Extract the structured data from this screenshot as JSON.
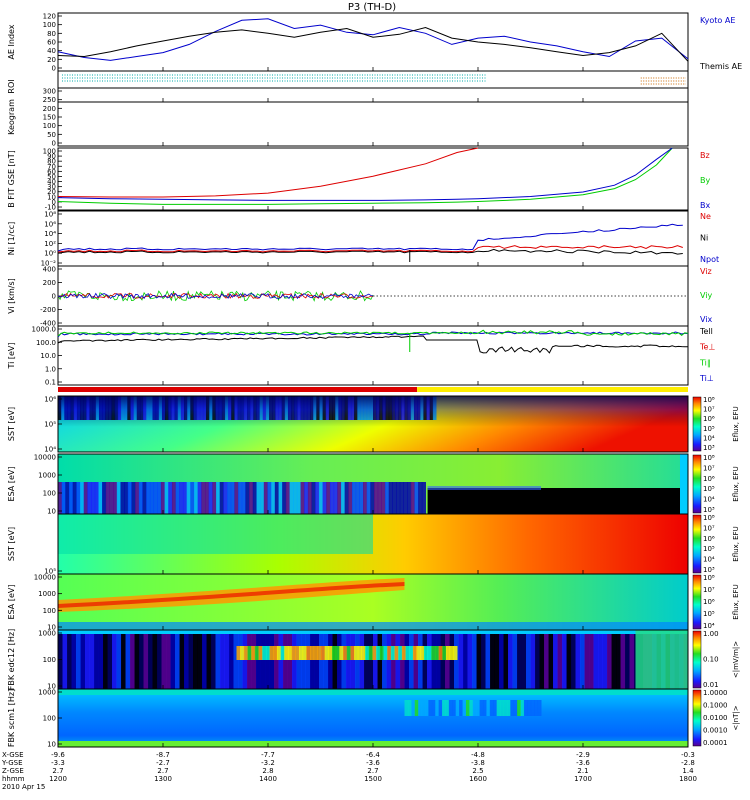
{
  "title": "P3 (TH-D)",
  "footer": {
    "row_labels": [
      "X-GSE",
      "Y-GSE",
      "Z-GSE",
      "hhmm",
      "2010 Apr 15"
    ],
    "columns": [
      [
        "-9.6",
        "-3.3",
        "2.7",
        "1200"
      ],
      [
        "-8.7",
        "-2.7",
        "2.7",
        "1300"
      ],
      [
        "-7.7",
        "-3.2",
        "2.8",
        "1400"
      ],
      [
        "-6.4",
        "-3.6",
        "2.7",
        "1500"
      ],
      [
        "-4.8",
        "-3.8",
        "2.5",
        "1600"
      ],
      [
        "-2.9",
        "-3.6",
        "2.1",
        "1700"
      ],
      [
        "-0.3",
        "-2.8",
        "1.4",
        "1800"
      ]
    ]
  },
  "colors": {
    "black": "#000000",
    "blue": "#0000cc",
    "red": "#dd0000",
    "green": "#00cc00",
    "cyan": "#00aaaa",
    "orange": "#cc6600"
  },
  "chart_data": [
    {
      "type": "line",
      "panel": "AE Index",
      "ylabel": "AE Index",
      "ylim": [
        0,
        120
      ],
      "ytick_labels": [
        "0",
        "20",
        "40",
        "60",
        "80",
        "100",
        "120"
      ],
      "x_hours": [
        12.0,
        12.25,
        12.5,
        12.75,
        13.0,
        13.25,
        13.5,
        13.75,
        14.0,
        14.25,
        14.5,
        14.75,
        15.0,
        15.25,
        15.5,
        15.75,
        16.0,
        16.25,
        16.5,
        16.75,
        17.0,
        17.25,
        17.5,
        17.75,
        18.0
      ],
      "series": [
        {
          "name": "Kyoto AE",
          "color": "blue",
          "values": [
            40,
            28,
            22,
            30,
            38,
            55,
            82,
            105,
            108,
            88,
            95,
            80,
            75,
            90,
            78,
            55,
            68,
            72,
            60,
            52,
            40,
            30,
            62,
            68,
            25
          ]
        },
        {
          "name": "Themis AE",
          "color": "black",
          "values": [
            32,
            30,
            40,
            52,
            62,
            72,
            80,
            85,
            78,
            70,
            80,
            88,
            70,
            76,
            90,
            68,
            60,
            55,
            48,
            40,
            32,
            38,
            52,
            78,
            20
          ]
        }
      ]
    },
    {
      "type": "line",
      "panel": "ROI",
      "ylabel": "ROI"
    },
    {
      "type": "line",
      "panel": "Keogram",
      "ylabel": "Keogram",
      "ylim": [
        0,
        300
      ],
      "ytick_labels": [
        "0",
        "50",
        "100",
        "150",
        "200",
        "250",
        "300"
      ]
    },
    {
      "type": "line",
      "panel": "B FIT",
      "ylabel": "B FIT GSE [nT]",
      "ylim": [
        -10,
        100
      ],
      "ytick_labels": [
        "-10",
        "0",
        "10",
        "20",
        "30",
        "40",
        "50",
        "60",
        "70",
        "80",
        "90",
        "100"
      ],
      "x_hours": [
        12.0,
        12.5,
        13.0,
        13.5,
        14.0,
        14.5,
        15.0,
        15.5,
        15.8,
        16.0,
        16.5,
        17.0,
        17.3,
        17.5,
        17.7,
        17.85
      ],
      "series": [
        {
          "name": "Bz",
          "color": "red",
          "values": [
            14,
            13,
            13,
            15,
            20,
            32,
            50,
            72,
            92,
            100,
            null,
            null,
            null,
            null,
            null,
            null
          ]
        },
        {
          "name": "By",
          "color": "green",
          "values": [
            5,
            2,
            0,
            0,
            0,
            1,
            2,
            3,
            4,
            5,
            9,
            17,
            28,
            44,
            70,
            100
          ]
        },
        {
          "name": "Bx",
          "color": "blue",
          "values": [
            12,
            10,
            9,
            8,
            7,
            7,
            7,
            8,
            9,
            10,
            14,
            22,
            34,
            52,
            80,
            100
          ]
        }
      ]
    },
    {
      "type": "line",
      "panel": "Ni",
      "ylabel": "Ni [1/cc]",
      "ytick_labels": [
        "10⁻²",
        "10⁰",
        "10²",
        "10⁴",
        "10⁶",
        "10⁸"
      ],
      "series": [
        {
          "name": "Ne",
          "color": "red"
        },
        {
          "name": "Ni",
          "color": "black"
        },
        {
          "name": "Npot",
          "color": "blue"
        }
      ]
    },
    {
      "type": "line",
      "panel": "Vi",
      "ylabel": "Vi [km/s]",
      "ylim": [
        -400,
        400
      ],
      "ytick_labels": [
        "-400",
        "-200",
        "0",
        "200",
        "400"
      ],
      "series": [
        {
          "name": "Viz",
          "color": "red"
        },
        {
          "name": "Viy",
          "color": "green"
        },
        {
          "name": "Vix",
          "color": "blue"
        }
      ]
    },
    {
      "type": "line",
      "panel": "Ti",
      "ylabel": "Ti [eV]",
      "ytick_labels": [
        "0.1",
        "1.0",
        "10.0",
        "100.0",
        "1000.0"
      ],
      "series": [
        {
          "name": "Tell",
          "color": "black"
        },
        {
          "name": "Te⊥",
          "color": "red"
        },
        {
          "name": "Ti∥",
          "color": "green"
        },
        {
          "name": "Ti⊥",
          "color": "blue"
        }
      ]
    },
    {
      "type": "heatmap",
      "panel": "SST ions",
      "ylabel": "SST [eV]",
      "ytick_labels": [
        "10⁴",
        "10⁵",
        "10⁶"
      ],
      "colorbar": {
        "label": "Eflux, EFU",
        "ticks": [
          "10³",
          "10⁴",
          "10⁵",
          "10⁶",
          "10⁷",
          "10⁸"
        ]
      }
    },
    {
      "type": "heatmap",
      "panel": "ESA ions",
      "ylabel": "ESA [eV]",
      "ytick_labels": [
        "10",
        "100",
        "1000",
        "10000"
      ],
      "colorbar": {
        "label": "Eflux, EFU",
        "ticks": [
          "10³",
          "10⁴",
          "10⁵",
          "10⁶",
          "10⁷",
          "10⁸"
        ]
      }
    },
    {
      "type": "heatmap",
      "panel": "SST electrons",
      "ylabel": "SST [eV]",
      "ytick_labels": [
        "10⁵"
      ],
      "colorbar": {
        "label": "Eflux, EFU",
        "ticks": [
          "10³",
          "10⁴",
          "10⁵",
          "10⁶",
          "10⁷",
          "10⁸"
        ]
      }
    },
    {
      "type": "heatmap",
      "panel": "ESA electrons",
      "ylabel": "ESA [eV]",
      "ytick_labels": [
        "10",
        "100",
        "1000",
        "10000"
      ],
      "colorbar": {
        "label": "Eflux, EFU",
        "ticks": [
          "10⁴",
          "10⁵",
          "10⁶",
          "10⁷",
          "10⁸"
        ]
      }
    },
    {
      "type": "heatmap",
      "panel": "FBK edc12",
      "ylabel": "FBK edc12 [Hz]",
      "ytick_labels": [
        "10",
        "100",
        "1000"
      ],
      "colorbar": {
        "label": "<|mV/m|>",
        "ticks": [
          "0.01",
          "0.10",
          "1.00"
        ]
      }
    },
    {
      "type": "heatmap",
      "panel": "FBK scm1",
      "ylabel": "FBK scm1 [Hz]",
      "ytick_labels": [
        "10",
        "100",
        "1000"
      ],
      "colorbar": {
        "label": "<|nT|>",
        "ticks": [
          "0.0001",
          "0.0010",
          "0.0100",
          "0.1000",
          "1.0000"
        ]
      }
    }
  ]
}
